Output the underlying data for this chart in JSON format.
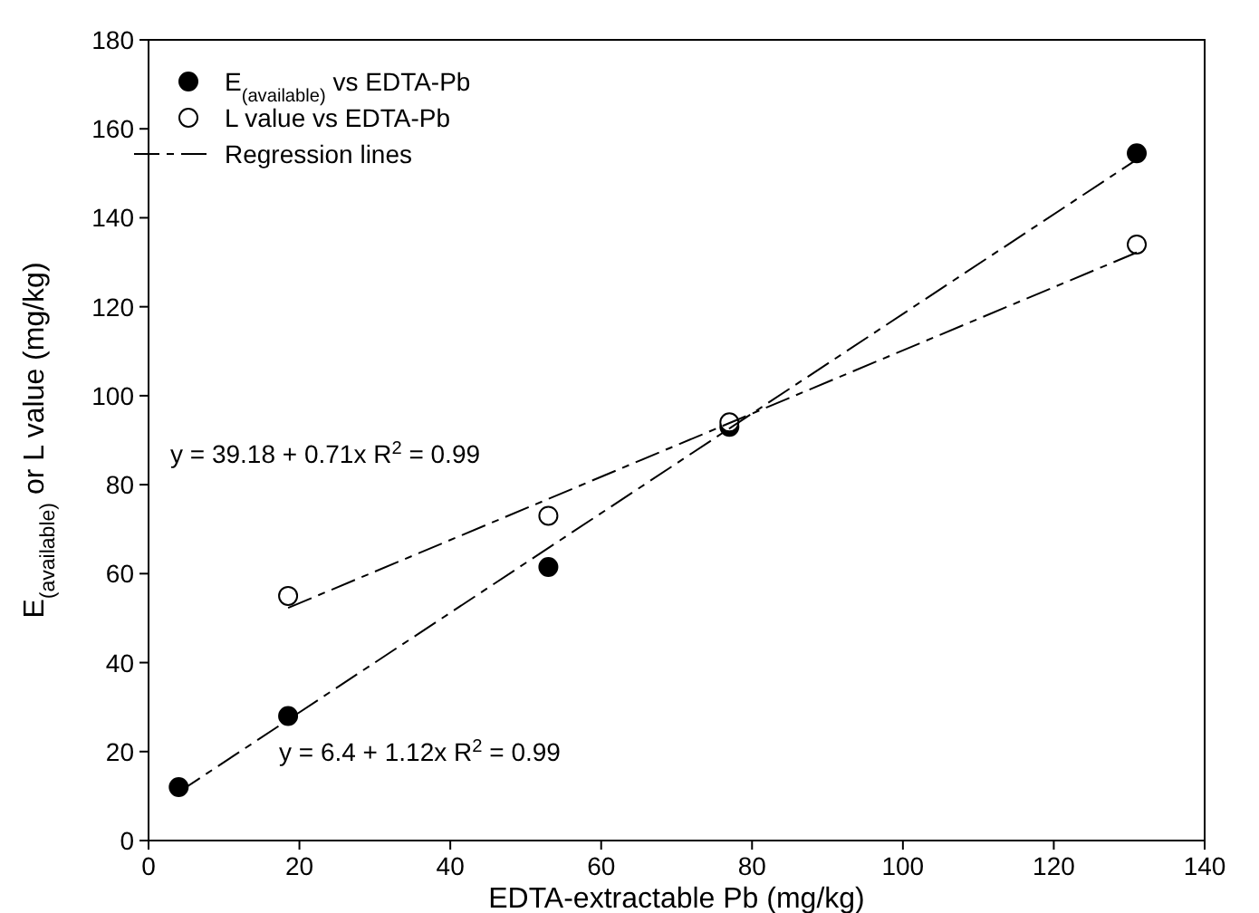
{
  "chart_data": {
    "type": "scatter",
    "xlabel": "EDTA-extractable Pb (mg/kg)",
    "ylabel": "E$_{(available)}$ or L value (mg/kg)",
    "xlim": [
      0,
      140
    ],
    "xticks": [
      0,
      20,
      40,
      60,
      80,
      100,
      120,
      140
    ],
    "ylim": [
      0,
      180
    ],
    "yticks": [
      0,
      20,
      40,
      60,
      80,
      100,
      120,
      140,
      160,
      180
    ],
    "grid": false,
    "legend": "top left",
    "series": [
      {
        "name": "E$_{(available)}$ vs EDTA-Pb",
        "color": "#000000",
        "marker": "circle",
        "x": [
          4,
          18.5,
          53,
          77,
          131
        ],
        "values": [
          12,
          28,
          61.5,
          93,
          154.5
        ]
      },
      {
        "name": "L value vs EDTA-Pb",
        "color": "#ffffff",
        "marker": "circle",
        "x": [
          18.5,
          53,
          77,
          131
        ],
        "values": [
          55,
          73,
          94,
          134
        ]
      },
      {
        "name": "Regression lines",
        "type": "line",
        "line_style": "dashed",
        "color": "#000000",
        "x": [
          4,
          131
        ],
        "values": [
          10.9,
          153.1
        ]
      },
      {
        "type": "line",
        "line_style": "dashed",
        "color": "#000000",
        "x": [
          18.5,
          131
        ],
        "values": [
          52.3,
          132.2
        ]
      }
    ],
    "annotations": [
      "y = 39.18 + 0.71x  R$^{2}$ = 0.99",
      "y = 6.4 + 1.12x  R$^{2}$ = 0.99"
    ]
  }
}
